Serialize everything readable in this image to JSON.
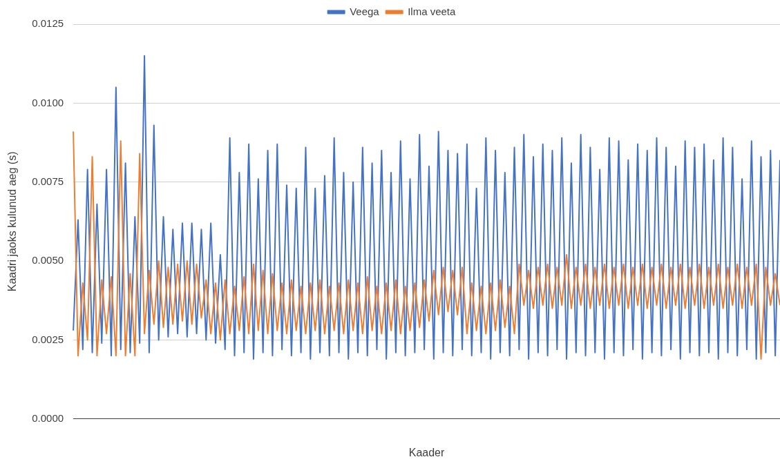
{
  "chart_data": {
    "type": "line",
    "xlabel": "Kaader",
    "ylabel": "Kaadri jaoks kulunud aeg (s)",
    "categories": [
      null,
      null,
      null,
      null,
      null,
      null,
      null,
      null,
      null,
      null,
      null,
      null,
      null,
      null,
      null,
      null,
      null,
      null,
      null,
      null,
      null,
      null,
      null,
      null,
      null,
      null,
      null,
      null,
      null,
      null,
      null,
      null,
      null,
      null,
      null,
      null,
      null,
      null,
      null,
      null,
      null,
      null,
      null,
      null,
      null,
      null,
      null,
      null,
      null,
      null,
      null,
      null,
      null,
      null,
      null,
      null,
      null,
      null,
      null,
      null,
      null,
      null,
      null,
      null,
      null,
      null,
      null,
      null,
      null,
      null,
      null,
      null,
      null,
      null,
      null,
      null,
      null,
      null,
      null,
      null,
      null,
      null,
      null,
      null,
      null,
      null,
      null,
      null,
      null,
      null,
      null,
      null,
      null,
      null,
      null,
      null,
      null,
      null,
      null,
      null,
      null,
      null,
      null,
      null,
      null,
      null,
      null,
      null,
      null,
      null,
      null,
      null,
      null,
      null,
      null,
      null,
      null,
      null,
      null,
      null,
      null,
      null,
      null,
      null,
      null,
      null,
      null,
      null,
      null,
      null,
      null,
      null,
      null,
      null,
      null,
      null,
      null,
      null,
      null,
      null,
      null,
      null,
      null,
      null,
      null,
      null,
      null,
      null,
      null,
      null
    ],
    "series": [
      {
        "name": "Veega",
        "color": "#4472c4",
        "values": [
          0.0028,
          0.0063,
          0.0022,
          0.0079,
          0.0021,
          0.0068,
          0.0024,
          0.0079,
          0.002,
          0.0105,
          0.0022,
          0.0081,
          0.0021,
          0.0064,
          0.0024,
          0.0115,
          0.0021,
          0.0093,
          0.0025,
          0.0064,
          0.0026,
          0.006,
          0.0027,
          0.0062,
          0.0026,
          0.0062,
          0.0027,
          0.006,
          0.0025,
          0.0062,
          0.0024,
          0.0052,
          0.0022,
          0.0089,
          0.002,
          0.0078,
          0.0021,
          0.0087,
          0.0019,
          0.0076,
          0.0021,
          0.0085,
          0.002,
          0.0087,
          0.0022,
          0.0074,
          0.002,
          0.0073,
          0.0021,
          0.0086,
          0.0019,
          0.0073,
          0.0021,
          0.0077,
          0.002,
          0.0089,
          0.0021,
          0.0078,
          0.0019,
          0.0075,
          0.0021,
          0.0086,
          0.002,
          0.0081,
          0.0022,
          0.0085,
          0.0019,
          0.0078,
          0.0021,
          0.0088,
          0.002,
          0.0076,
          0.0021,
          0.009,
          0.0022,
          0.008,
          0.0019,
          0.0091,
          0.0021,
          0.0085,
          0.002,
          0.0084,
          0.0022,
          0.0087,
          0.002,
          0.0073,
          0.0021,
          0.0089,
          0.0019,
          0.0085,
          0.0021,
          0.0078,
          0.002,
          0.0086,
          0.0022,
          0.009,
          0.0019,
          0.0083,
          0.0021,
          0.0087,
          0.002,
          0.0085,
          0.0022,
          0.0089,
          0.0019,
          0.0081,
          0.0021,
          0.009,
          0.002,
          0.0086,
          0.0021,
          0.0079,
          0.0019,
          0.0089,
          0.0021,
          0.0088,
          0.002,
          0.0082,
          0.0022,
          0.0087,
          0.0019,
          0.0085,
          0.0021,
          0.0089,
          0.002,
          0.0086,
          0.0022,
          0.008,
          0.0019,
          0.0088,
          0.0021,
          0.0086,
          0.002,
          0.0087,
          0.0021,
          0.0082,
          0.0019,
          0.0089,
          0.0021,
          0.0086,
          0.002,
          0.0076,
          0.0022,
          0.0088,
          0.0019,
          0.0083,
          0.0021,
          0.0085,
          0.002,
          0.0082
        ]
      },
      {
        "name": "Ilma veeta",
        "color": "#ed7d31",
        "values": [
          0.0091,
          0.002,
          0.0043,
          0.0025,
          0.0083,
          0.002,
          0.0044,
          0.0027,
          0.0045,
          0.002,
          0.0088,
          0.002,
          0.0046,
          0.002,
          0.0084,
          0.0027,
          0.0047,
          0.003,
          0.005,
          0.0029,
          0.0048,
          0.003,
          0.0049,
          0.0031,
          0.005,
          0.003,
          0.0049,
          0.0032,
          0.0044,
          0.0027,
          0.0043,
          0.0025,
          0.0044,
          0.0027,
          0.0042,
          0.0028,
          0.0045,
          0.0027,
          0.0049,
          0.0028,
          0.0047,
          0.0027,
          0.0046,
          0.0028,
          0.0043,
          0.0027,
          0.0044,
          0.0028,
          0.0042,
          0.0027,
          0.0043,
          0.0028,
          0.0044,
          0.0027,
          0.0042,
          0.0028,
          0.0043,
          0.0027,
          0.0044,
          0.0028,
          0.0043,
          0.0027,
          0.0045,
          0.0028,
          0.0042,
          0.0027,
          0.0043,
          0.0028,
          0.0044,
          0.0027,
          0.0042,
          0.0028,
          0.0043,
          0.0029,
          0.0044,
          0.0031,
          0.0047,
          0.0033,
          0.0048,
          0.0034,
          0.0047,
          0.0033,
          0.0048,
          0.0027,
          0.0043,
          0.0028,
          0.0042,
          0.0027,
          0.0043,
          0.0028,
          0.0044,
          0.0029,
          0.0042,
          0.0027,
          0.0049,
          0.0036,
          0.0047,
          0.0035,
          0.0048,
          0.0036,
          0.0049,
          0.0035,
          0.0048,
          0.0036,
          0.0052,
          0.0035,
          0.0048,
          0.0036,
          0.0049,
          0.0035,
          0.0048,
          0.0036,
          0.0049,
          0.0035,
          0.0048,
          0.0036,
          0.0049,
          0.0035,
          0.0048,
          0.0036,
          0.0049,
          0.0035,
          0.0048,
          0.0036,
          0.0049,
          0.0035,
          0.0048,
          0.0036,
          0.0049,
          0.0035,
          0.0048,
          0.0036,
          0.0049,
          0.0035,
          0.0048,
          0.0036,
          0.0049,
          0.0035,
          0.0048,
          0.0036,
          0.0049,
          0.0035,
          0.0048,
          0.0036,
          0.0049,
          0.0019,
          0.0048,
          0.0036,
          0.0046,
          0.0036
        ]
      }
    ],
    "ylim": [
      0,
      0.0125
    ],
    "yticks": [
      {
        "value": 0,
        "label": "0.0000"
      },
      {
        "value": 0.0025,
        "label": "0.0025"
      },
      {
        "value": 0.005,
        "label": "0.0050"
      },
      {
        "value": 0.0075,
        "label": "0.0075"
      },
      {
        "value": 0.01,
        "label": "0.0100"
      },
      {
        "value": 0.0125,
        "label": "0.0125"
      }
    ],
    "grid": "y",
    "legend": "top",
    "marker": "none",
    "line_style": "solid",
    "tick_labels": "y"
  }
}
